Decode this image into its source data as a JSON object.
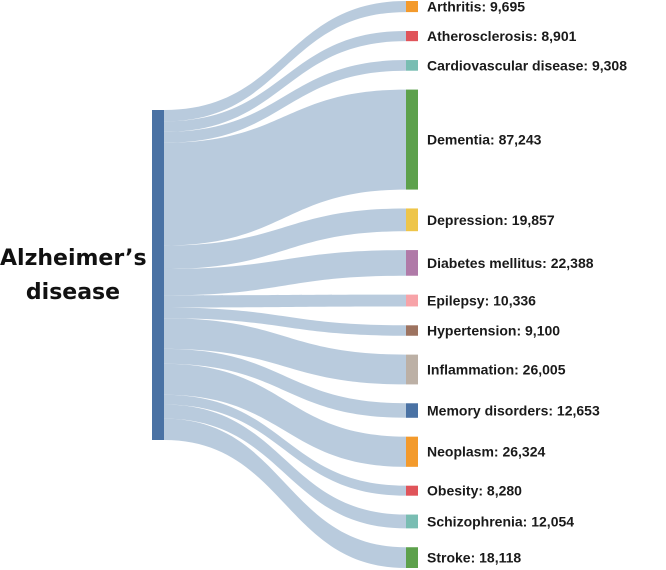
{
  "chart_data": {
    "type": "sankey",
    "source": {
      "name_line1": "Alzheimer’s",
      "name_line2": "disease",
      "color": "#4a72a4"
    },
    "link_color": "#b5c8db",
    "targets": [
      {
        "name": "Arthritis",
        "value": 9695,
        "label": "Arthritis: 9,695",
        "color": "#f39a2c"
      },
      {
        "name": "Atherosclerosis",
        "value": 8901,
        "label": "Atherosclerosis: 8,901",
        "color": "#e0545a"
      },
      {
        "name": "Cardiovascular disease",
        "value": 9308,
        "label": "Cardiovascular disease: 9,308",
        "color": "#79bdb2"
      },
      {
        "name": "Dementia",
        "value": 87243,
        "label": "Dementia: 87,243",
        "color": "#5da14c"
      },
      {
        "name": "Depression",
        "value": 19857,
        "label": "Depression: 19,857",
        "color": "#eec549"
      },
      {
        "name": "Diabetes mellitus",
        "value": 22388,
        "label": "Diabetes mellitus: 22,388",
        "color": "#b07aa8"
      },
      {
        "name": "Epilepsy",
        "value": 10336,
        "label": "Epilepsy: 10,336",
        "color": "#f7a3a8"
      },
      {
        "name": "Hypertension",
        "value": 9100,
        "label": "Hypertension: 9,100",
        "color": "#9d7360"
      },
      {
        "name": "Inflammation",
        "value": 26005,
        "label": "Inflammation: 26,005",
        "color": "#bcb0a5"
      },
      {
        "name": "Memory disorders",
        "value": 12653,
        "label": "Memory disorders: 12,653",
        "color": "#4a72a4"
      },
      {
        "name": "Neoplasm",
        "value": 26324,
        "label": "Neoplasm: 26,324",
        "color": "#f39a2c"
      },
      {
        "name": "Obesity",
        "value": 8280,
        "label": "Obesity: 8,280",
        "color": "#e0545a"
      },
      {
        "name": "Schizophrenia",
        "value": 12054,
        "label": "Schizophrenia: 12,054",
        "color": "#79bdb2"
      },
      {
        "name": "Stroke",
        "value": 18118,
        "label": "Stroke: 18,118",
        "color": "#5da14c"
      }
    ]
  }
}
